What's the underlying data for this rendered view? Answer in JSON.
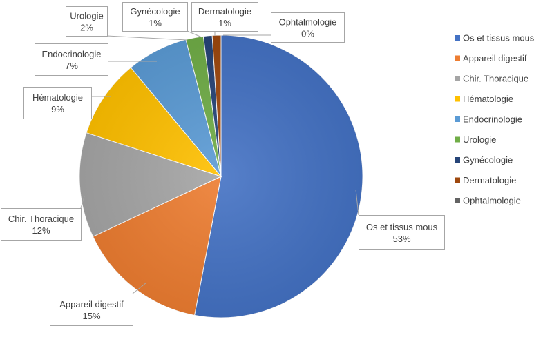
{
  "chart_data": {
    "type": "pie",
    "title": "",
    "legend_position": "right",
    "categories": [
      "Os et tissus mous",
      "Appareil digestif",
      "Chir. Thoracique",
      "Hématologie",
      "Endocrinologie",
      "Urologie",
      "Gynécologie",
      "Dermatologie",
      "Ophtalmologie"
    ],
    "values": [
      53,
      15,
      12,
      9,
      7,
      2,
      1,
      1,
      0
    ],
    "value_labels": [
      "53%",
      "15%",
      "12%",
      "9%",
      "7%",
      "2%",
      "1%",
      "1%",
      "0%"
    ],
    "colors": [
      "#4472c4",
      "#ed7d31",
      "#a5a5a5",
      "#ffc000",
      "#5b9bd5",
      "#70ad47",
      "#264478",
      "#9e480e",
      "#636363"
    ]
  }
}
